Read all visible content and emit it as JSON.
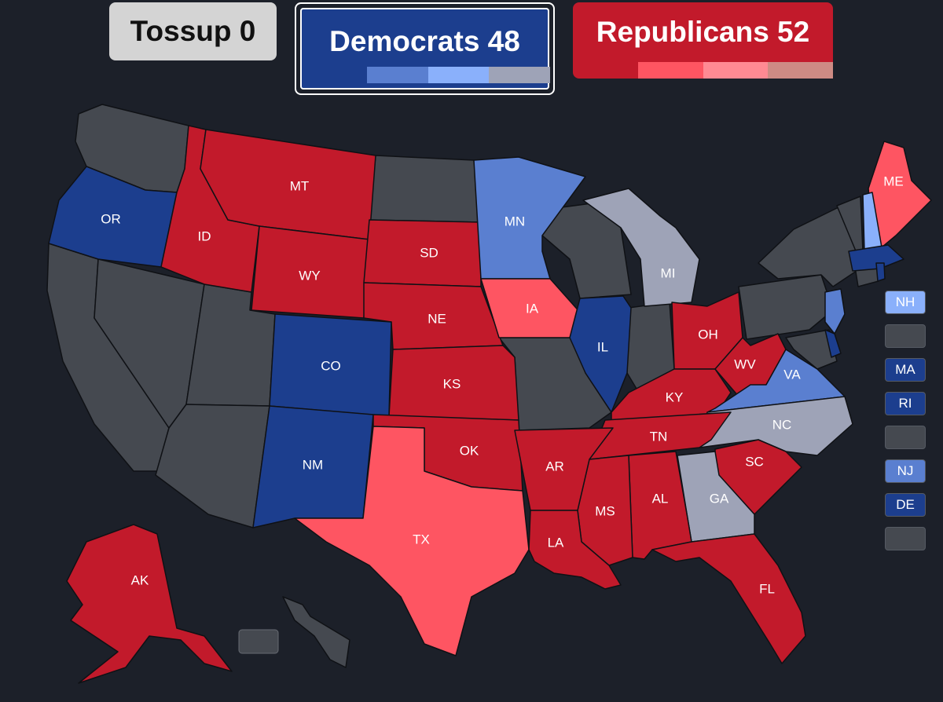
{
  "header": {
    "tossup_label": "Tossup 0",
    "democrats_label": "Democrats 48",
    "republicans_label": "Republicans 52"
  },
  "colors": {
    "background": "#1c2029",
    "uncontested": "#454950",
    "safe_dem": "#1c3e8e",
    "likely_dem": "#5a7fd0",
    "lean_dem": "#8ab0fb",
    "tilt_dem": "#9ea3b7",
    "safe_rep": "#c21a2b",
    "likely_rep": "#fe5562",
    "lean_rep": "#ff8a93",
    "tilt_rep": "#ce8b84",
    "tossup": "#d4d4d4"
  },
  "dem_bar": [
    "likely_dem",
    "lean_dem",
    "tilt_dem"
  ],
  "rep_bar": [
    "likely_rep",
    "lean_rep",
    "tilt_rep"
  ],
  "states": [
    {
      "abbr": "OR",
      "rating": "safe_dem"
    },
    {
      "abbr": "ID",
      "rating": "safe_rep"
    },
    {
      "abbr": "MT",
      "rating": "safe_rep"
    },
    {
      "abbr": "WY",
      "rating": "safe_rep"
    },
    {
      "abbr": "SD",
      "rating": "safe_rep"
    },
    {
      "abbr": "NE",
      "rating": "safe_rep"
    },
    {
      "abbr": "KS",
      "rating": "safe_rep"
    },
    {
      "abbr": "OK",
      "rating": "safe_rep"
    },
    {
      "abbr": "TX",
      "rating": "likely_rep"
    },
    {
      "abbr": "CO",
      "rating": "safe_dem"
    },
    {
      "abbr": "NM",
      "rating": "safe_dem"
    },
    {
      "abbr": "MN",
      "rating": "likely_dem"
    },
    {
      "abbr": "IA",
      "rating": "likely_rep"
    },
    {
      "abbr": "IL",
      "rating": "safe_dem"
    },
    {
      "abbr": "MI",
      "rating": "tilt_dem"
    },
    {
      "abbr": "OH",
      "rating": "safe_rep"
    },
    {
      "abbr": "KY",
      "rating": "safe_rep"
    },
    {
      "abbr": "WV",
      "rating": "safe_rep"
    },
    {
      "abbr": "VA",
      "rating": "likely_dem"
    },
    {
      "abbr": "NC",
      "rating": "tilt_dem"
    },
    {
      "abbr": "TN",
      "rating": "safe_rep"
    },
    {
      "abbr": "SC",
      "rating": "safe_rep"
    },
    {
      "abbr": "GA",
      "rating": "tilt_dem"
    },
    {
      "abbr": "AL",
      "rating": "safe_rep"
    },
    {
      "abbr": "MS",
      "rating": "safe_rep"
    },
    {
      "abbr": "AR",
      "rating": "safe_rep"
    },
    {
      "abbr": "LA",
      "rating": "safe_rep"
    },
    {
      "abbr": "FL",
      "rating": "safe_rep"
    },
    {
      "abbr": "ME",
      "rating": "likely_rep"
    },
    {
      "abbr": "AK",
      "rating": "safe_rep"
    }
  ],
  "legend": [
    {
      "label": "NH",
      "rating": "lean_dem"
    },
    {
      "label": "",
      "rating": "uncontested"
    },
    {
      "label": "MA",
      "rating": "safe_dem"
    },
    {
      "label": "RI",
      "rating": "safe_dem"
    },
    {
      "label": "",
      "rating": "uncontested"
    },
    {
      "label": "NJ",
      "rating": "likely_dem"
    },
    {
      "label": "DE",
      "rating": "safe_dem"
    },
    {
      "label": "",
      "rating": "uncontested"
    }
  ]
}
